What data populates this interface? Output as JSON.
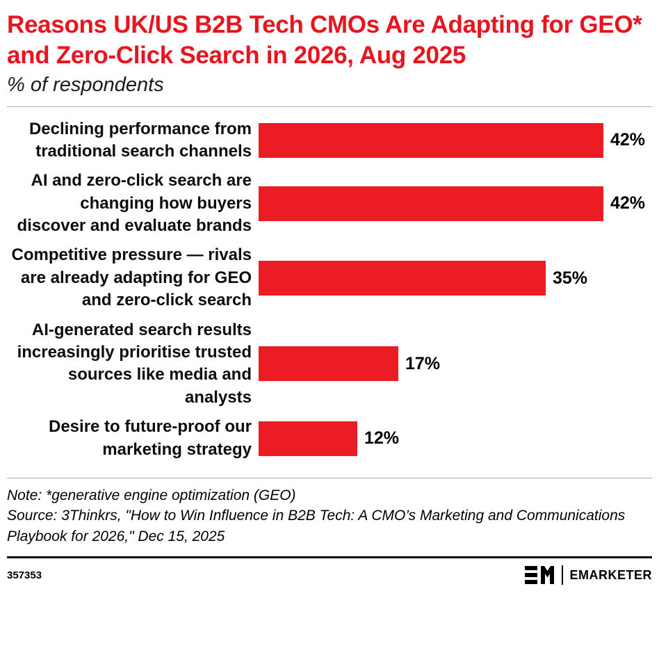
{
  "title": "Reasons UK/US B2B Tech CMOs Are Adapting for GEO* and Zero-Click Search in 2026, Aug 2025",
  "subtitle": "% of respondents",
  "chart_data": {
    "type": "bar",
    "orientation": "horizontal",
    "title": "Reasons UK/US B2B Tech CMOs Are Adapting for GEO* and Zero-Click Search in 2026, Aug 2025",
    "xlabel": "% of respondents",
    "ylabel": "",
    "xlim": [
      0,
      48
    ],
    "grid": false,
    "legend": "none",
    "bar_color": "#ec1c24",
    "categories": [
      "Declining performance from traditional search channels",
      "AI and zero-click search are changing how buyers discover and evaluate brands",
      "Competitive pressure — rivals are already adapting for GEO and zero-click search",
      "AI-generated search results increasingly prioritise trusted sources like media and analysts",
      "Desire to future-proof our marketing strategy"
    ],
    "values": [
      42,
      42,
      35,
      17,
      12
    ],
    "value_labels": [
      "42%",
      "42%",
      "35%",
      "17%",
      "12%"
    ]
  },
  "note": "Note: *generative engine optimization (GEO)",
  "source": "Source: 3Thinkrs, \"How to Win Influence in B2B Tech: A CMO’s Marketing and Communications Playbook for 2026,\" Dec 15, 2025",
  "footer": {
    "chart_id": "357353",
    "brand": "EMARKETER"
  }
}
